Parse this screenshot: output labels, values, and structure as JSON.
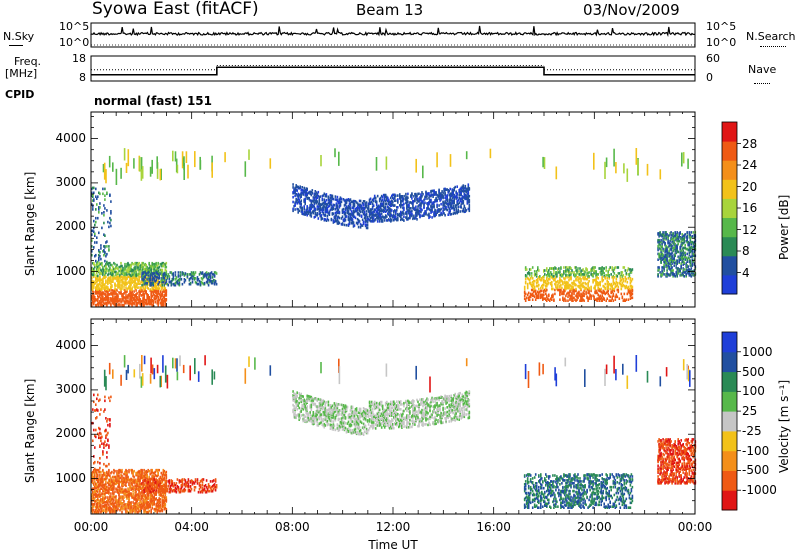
{
  "header": {
    "title": "Syowa East (fitACF)",
    "beam": "Beam 13",
    "date": "03/Nov/2009"
  },
  "top_panels": {
    "nsky_label": "N.Sky",
    "nsearch_label": "N.Search",
    "sky_ticks": [
      "10^5",
      "10^0"
    ],
    "freq_label_1": "Freq.",
    "freq_label_2": "[MHz]",
    "freq_ticks": [
      "18",
      "8"
    ],
    "nave_label": "Nave",
    "nave_ticks": [
      "60",
      "0"
    ],
    "cpid_label": "CPID",
    "cpid_value": "normal (fast) 151"
  },
  "colors": {
    "power": [
      "#1f3fd8",
      "#214fa0",
      "#2a8a55",
      "#57b84a",
      "#a8d43c",
      "#f2c21a",
      "#f48f1a",
      "#ef5a14",
      "#e01515"
    ],
    "velocity": [
      "#e01515",
      "#ef5a14",
      "#f48f1a",
      "#f2c21a",
      "#c6c6c6",
      "#57b84a",
      "#2a8a55",
      "#214fa0",
      "#1f3fd8"
    ]
  },
  "chart_data": [
    {
      "type": "heatmap",
      "name": "power",
      "ylabel": "Slant Range [km]",
      "yticks": [
        "1000",
        "2000",
        "3000",
        "4000"
      ],
      "ylim": [
        200,
        4600
      ],
      "colorbar_label": "Power [dB]",
      "colorbar_ticks": [
        "4",
        "8",
        "12",
        "16",
        "20",
        "24",
        "28"
      ],
      "clim": [
        0,
        32
      ]
    },
    {
      "type": "heatmap",
      "name": "velocity",
      "ylabel": "Slant Range [km]",
      "yticks": [
        "1000",
        "2000",
        "3000",
        "4000"
      ],
      "ylim": [
        200,
        4600
      ],
      "colorbar_label": "Velocity [m s⁻¹]",
      "colorbar_ticks": [
        "-1000",
        "-500",
        "-100",
        "-25",
        "25",
        "100",
        "500",
        "1000"
      ]
    }
  ],
  "x_axis": {
    "label": "Time UT",
    "ticks": [
      "00:00",
      "04:00",
      "08:00",
      "12:00",
      "16:00",
      "20:00",
      "00:00"
    ],
    "xlim_hours": [
      0,
      24
    ]
  }
}
